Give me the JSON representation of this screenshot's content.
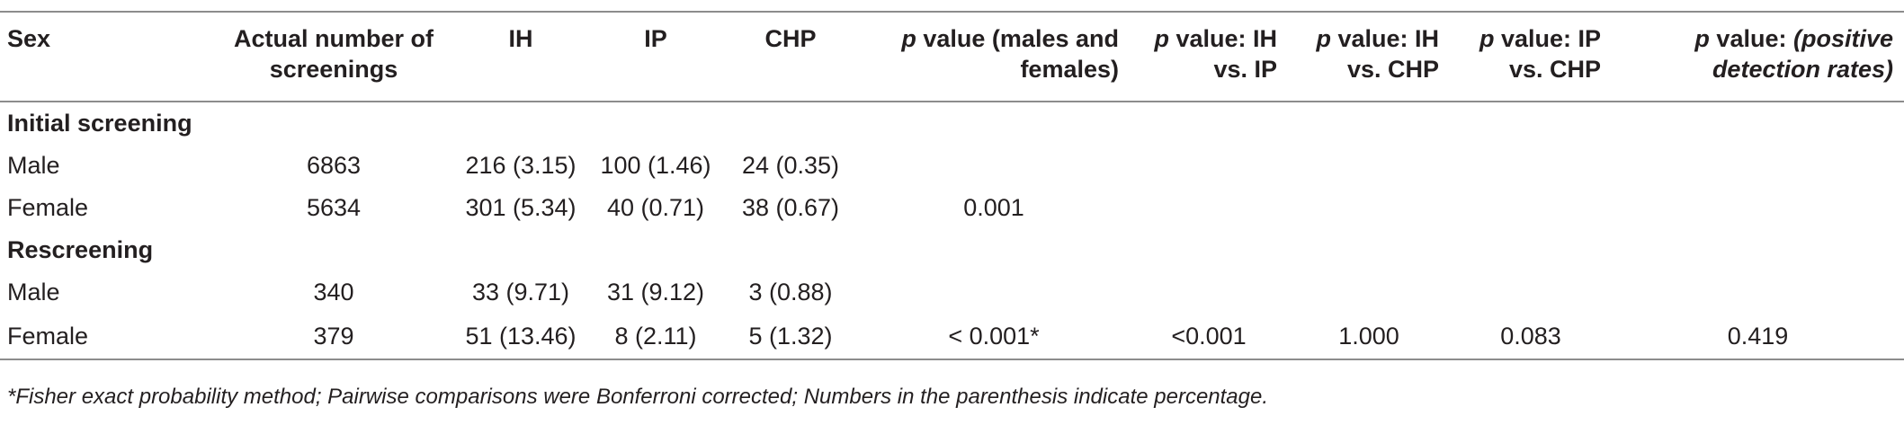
{
  "table": {
    "headers": {
      "sex": "Sex",
      "actual": "Actual number of screenings",
      "ih": "IH",
      "ip": "IP",
      "chp": "CHP",
      "p_mf_prefix": "p",
      "p_mf_rest": " value (males and females)",
      "p_ih_ip_prefix": "p",
      "p_ih_ip_rest": " value: IH vs. IP",
      "p_ih_chp_prefix": "p",
      "p_ih_chp_rest": " value: IH vs. CHP",
      "p_ip_chp_prefix": "p",
      "p_ip_chp_rest": " value: IP vs. CHP",
      "p_pos_prefix": "p",
      "p_pos_mid": " value: ",
      "p_pos_ital": "(positive detection rates)"
    },
    "sections": [
      {
        "title": "Initial screening",
        "rows": [
          {
            "sex": "Male",
            "actual": "6863",
            "ih": "216 (3.15)",
            "ip": "100 (1.46)",
            "chp": "24 (0.35)",
            "p_mf": "",
            "p_ih_ip": "",
            "p_ih_chp": "",
            "p_ip_chp": "",
            "p_pos": ""
          },
          {
            "sex": "Female",
            "actual": "5634",
            "ih": "301 (5.34)",
            "ip": "40 (0.71)",
            "chp": "38 (0.67)",
            "p_mf": "0.001",
            "p_ih_ip": "",
            "p_ih_chp": "",
            "p_ip_chp": "",
            "p_pos": ""
          }
        ]
      },
      {
        "title": "Rescreening",
        "rows": [
          {
            "sex": "Male",
            "actual": "340",
            "ih": "33 (9.71)",
            "ip": "31 (9.12)",
            "chp": "3 (0.88)",
            "p_mf": "",
            "p_ih_ip": "",
            "p_ih_chp": "",
            "p_ip_chp": "",
            "p_pos": ""
          },
          {
            "sex": "Female",
            "actual": "379",
            "ih": "51 (13.46)",
            "ip": "8 (2.11)",
            "chp": "5 (1.32)",
            "p_mf": "< 0.001*",
            "p_ih_ip": "<0.001",
            "p_ih_chp": "1.000",
            "p_ip_chp": "0.083",
            "p_pos": "0.419"
          }
        ]
      }
    ],
    "footnote": "*Fisher exact probability method; Pairwise comparisons were Bonferroni corrected; Numbers in the parenthesis indicate percentage."
  }
}
